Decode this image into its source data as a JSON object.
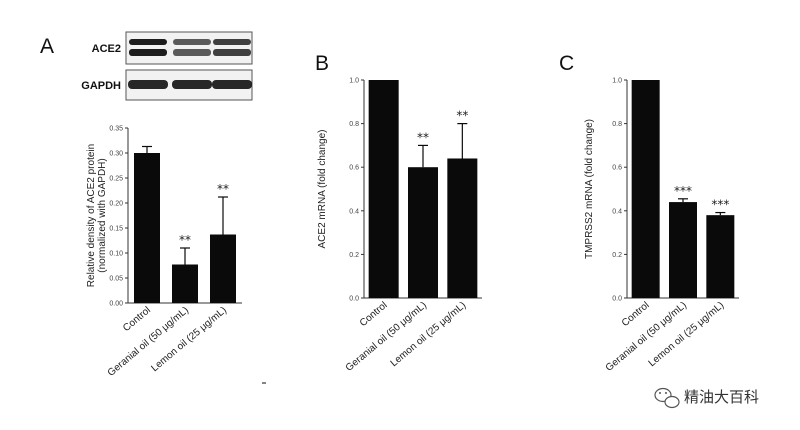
{
  "chart_data": [
    {
      "type": "bar",
      "panel": "A",
      "ylabel": "Relative density of ACE2 protein (normalized with GAPDH)",
      "ylim": [
        0,
        0.35
      ],
      "yticks": [
        "0.00",
        "0.05",
        "0.10",
        "0.15",
        "0.20",
        "0.25",
        "0.30",
        "0.35"
      ],
      "categories": [
        "Control",
        "Geranial oil (50 μg/mL)",
        "Lemon oil (25 μg/mL)"
      ],
      "values": [
        0.3,
        0.077,
        0.137
      ],
      "errors": [
        0.013,
        0.033,
        0.075
      ],
      "significance": [
        "",
        "**",
        "**"
      ],
      "blot_labels": [
        "ACE2",
        "GAPDH"
      ]
    },
    {
      "type": "bar",
      "panel": "B",
      "ylabel": "ACE2 mRNA (fold change)",
      "ylim": [
        0,
        1.0
      ],
      "yticks": [
        "0.0",
        "0.2",
        "0.4",
        "0.6",
        "0.8",
        "1.0"
      ],
      "categories": [
        "Control",
        "Geranial oil (50 μg/mL)",
        "Lemon oil (25 μg/mL)"
      ],
      "values": [
        1.0,
        0.6,
        0.64
      ],
      "errors": [
        0.0,
        0.1,
        0.16
      ],
      "significance": [
        "",
        "**",
        "**"
      ]
    },
    {
      "type": "bar",
      "panel": "C",
      "ylabel": "TMPRSS2 mRNA (fold change)",
      "ylim": [
        0,
        1.0
      ],
      "yticks": [
        "0.0",
        "0.2",
        "0.4",
        "0.6",
        "0.8",
        "1.0"
      ],
      "categories": [
        "Control",
        "Geranial oil (50 μg/mL)",
        "Lemon oil (25 μg/mL)"
      ],
      "values": [
        1.0,
        0.44,
        0.38
      ],
      "errors": [
        0.0,
        0.015,
        0.012
      ],
      "significance": [
        "",
        "***",
        "***"
      ]
    }
  ],
  "watermark": {
    "text": "精油大百科",
    "icon": "wechat-logo-icon"
  },
  "colors": {
    "bar": "#0a0a0a",
    "axis": "#333333",
    "text": "#222222"
  }
}
